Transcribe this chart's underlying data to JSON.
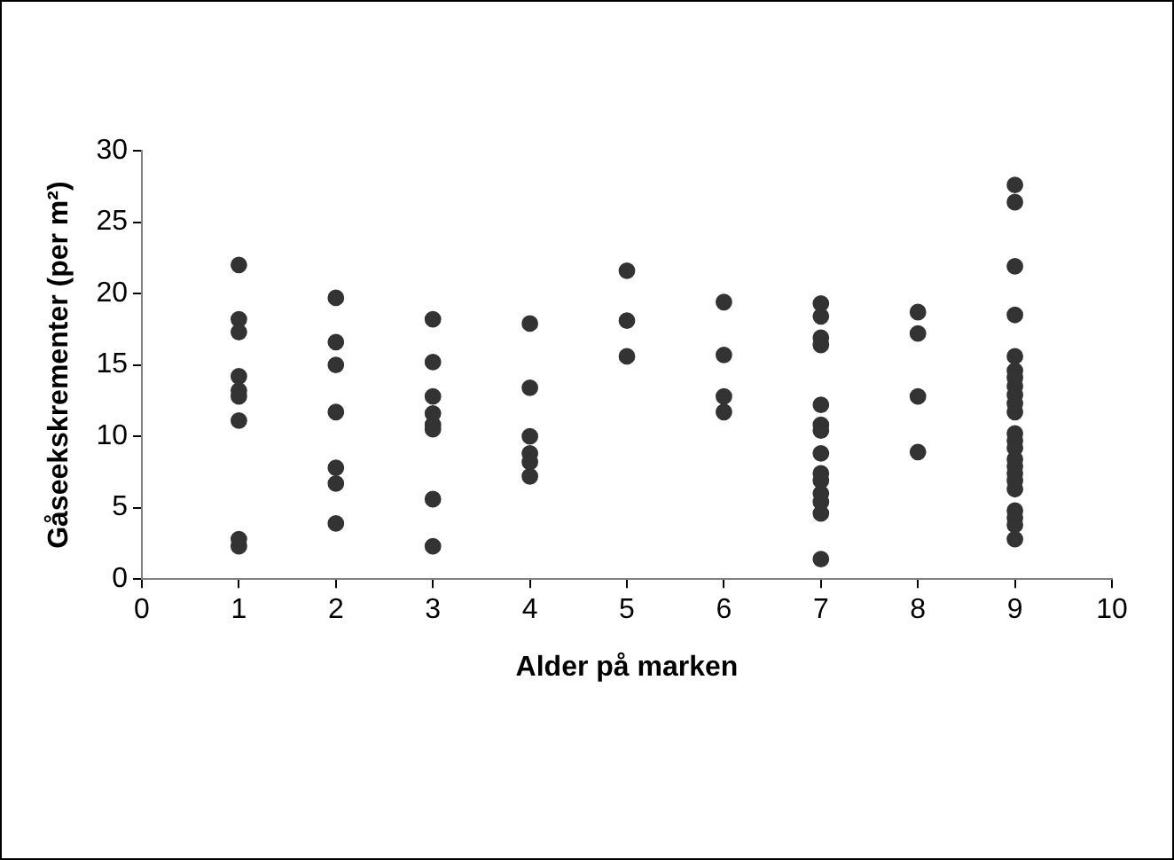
{
  "chart_data": {
    "type": "scatter",
    "xlabel": "Alder på marken",
    "ylabel": "Gåseekskrementer (per m²)",
    "x": [
      1,
      1,
      1,
      1,
      1,
      1,
      1,
      1,
      1,
      2,
      2,
      2,
      2,
      2,
      2,
      2,
      3,
      3,
      3,
      3,
      3,
      3,
      3,
      3,
      4,
      4,
      4,
      4,
      4,
      4,
      5,
      5,
      5,
      6,
      6,
      6,
      6,
      7,
      7,
      7,
      7,
      7,
      7,
      7,
      7,
      7,
      7,
      7,
      7,
      7,
      7,
      8,
      8,
      8,
      8,
      9,
      9,
      9,
      9,
      9,
      9,
      9,
      9,
      9,
      9,
      9,
      9,
      9,
      9,
      9,
      9,
      9,
      9,
      9,
      9,
      9,
      9,
      9
    ],
    "series": [
      {
        "color": "#333333",
        "values": [
          22,
          18.2,
          17.3,
          14.2,
          13.2,
          12.8,
          11.1,
          2.8,
          2.3,
          19.7,
          16.6,
          15,
          11.7,
          7.8,
          6.7,
          3.9,
          18.2,
          15.2,
          12.8,
          11.6,
          10.8,
          10.5,
          5.6,
          2.3,
          17.9,
          13.4,
          10,
          8.8,
          8.2,
          7.2,
          21.6,
          18.1,
          15.6,
          19.4,
          15.7,
          12.8,
          11.7,
          19.3,
          18.4,
          16.9,
          16.4,
          12.2,
          10.8,
          10.4,
          8.8,
          7.4,
          6.9,
          6,
          5.4,
          4.6,
          1.4,
          18.7,
          17.2,
          12.8,
          8.9,
          27.6,
          26.4,
          21.9,
          18.5,
          15.6,
          14.6,
          14.1,
          13.5,
          12.9,
          12.3,
          11.7,
          10.2,
          9.7,
          9.2,
          8.4,
          7.9,
          7.4,
          6.9,
          6.3,
          4.8,
          4.3,
          3.8,
          2.8
        ]
      }
    ],
    "xlim": [
      0,
      10
    ],
    "xticks": [
      0,
      1,
      2,
      3,
      4,
      5,
      6,
      7,
      8,
      9,
      10
    ],
    "ylim": [
      0,
      30
    ],
    "yticks": [
      0,
      5,
      10,
      15,
      20,
      25,
      30
    ],
    "grid": false,
    "legend": false,
    "marker": "circle"
  }
}
